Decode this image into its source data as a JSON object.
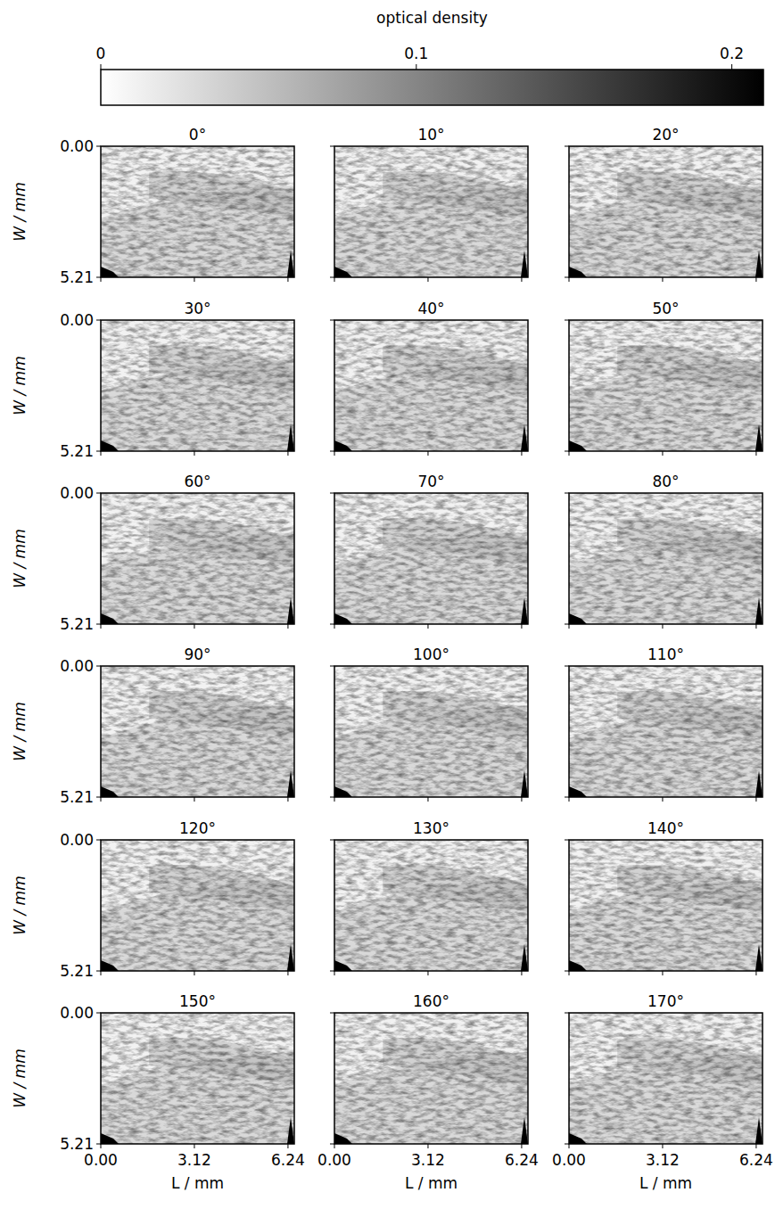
{
  "chart_data": {
    "type": "image",
    "colorbar": {
      "label": "optical density",
      "range": [
        0,
        0.21
      ],
      "ticks": [
        0,
        0.1,
        0.2
      ]
    },
    "xlabel": "L / mm",
    "ylabel": "W / mm",
    "xlim": [
      0,
      6.45
    ],
    "ylim": [
      5.21,
      0
    ],
    "xticks": [
      {
        "value": 0,
        "label": "0.00"
      },
      {
        "value": 3.12,
        "label": "3.12"
      },
      {
        "value": 6.24,
        "label": "6.24"
      }
    ],
    "yticks": [
      {
        "value": 0,
        "label": "0.00"
      },
      {
        "value": 5.21,
        "label": "5.21"
      }
    ],
    "panels": [
      "0°",
      "10°",
      "20°",
      "30°",
      "40°",
      "50°",
      "60°",
      "70°",
      "80°",
      "90°",
      "100°",
      "110°",
      "120°",
      "130°",
      "140°",
      "150°",
      "160°",
      "170°"
    ]
  }
}
